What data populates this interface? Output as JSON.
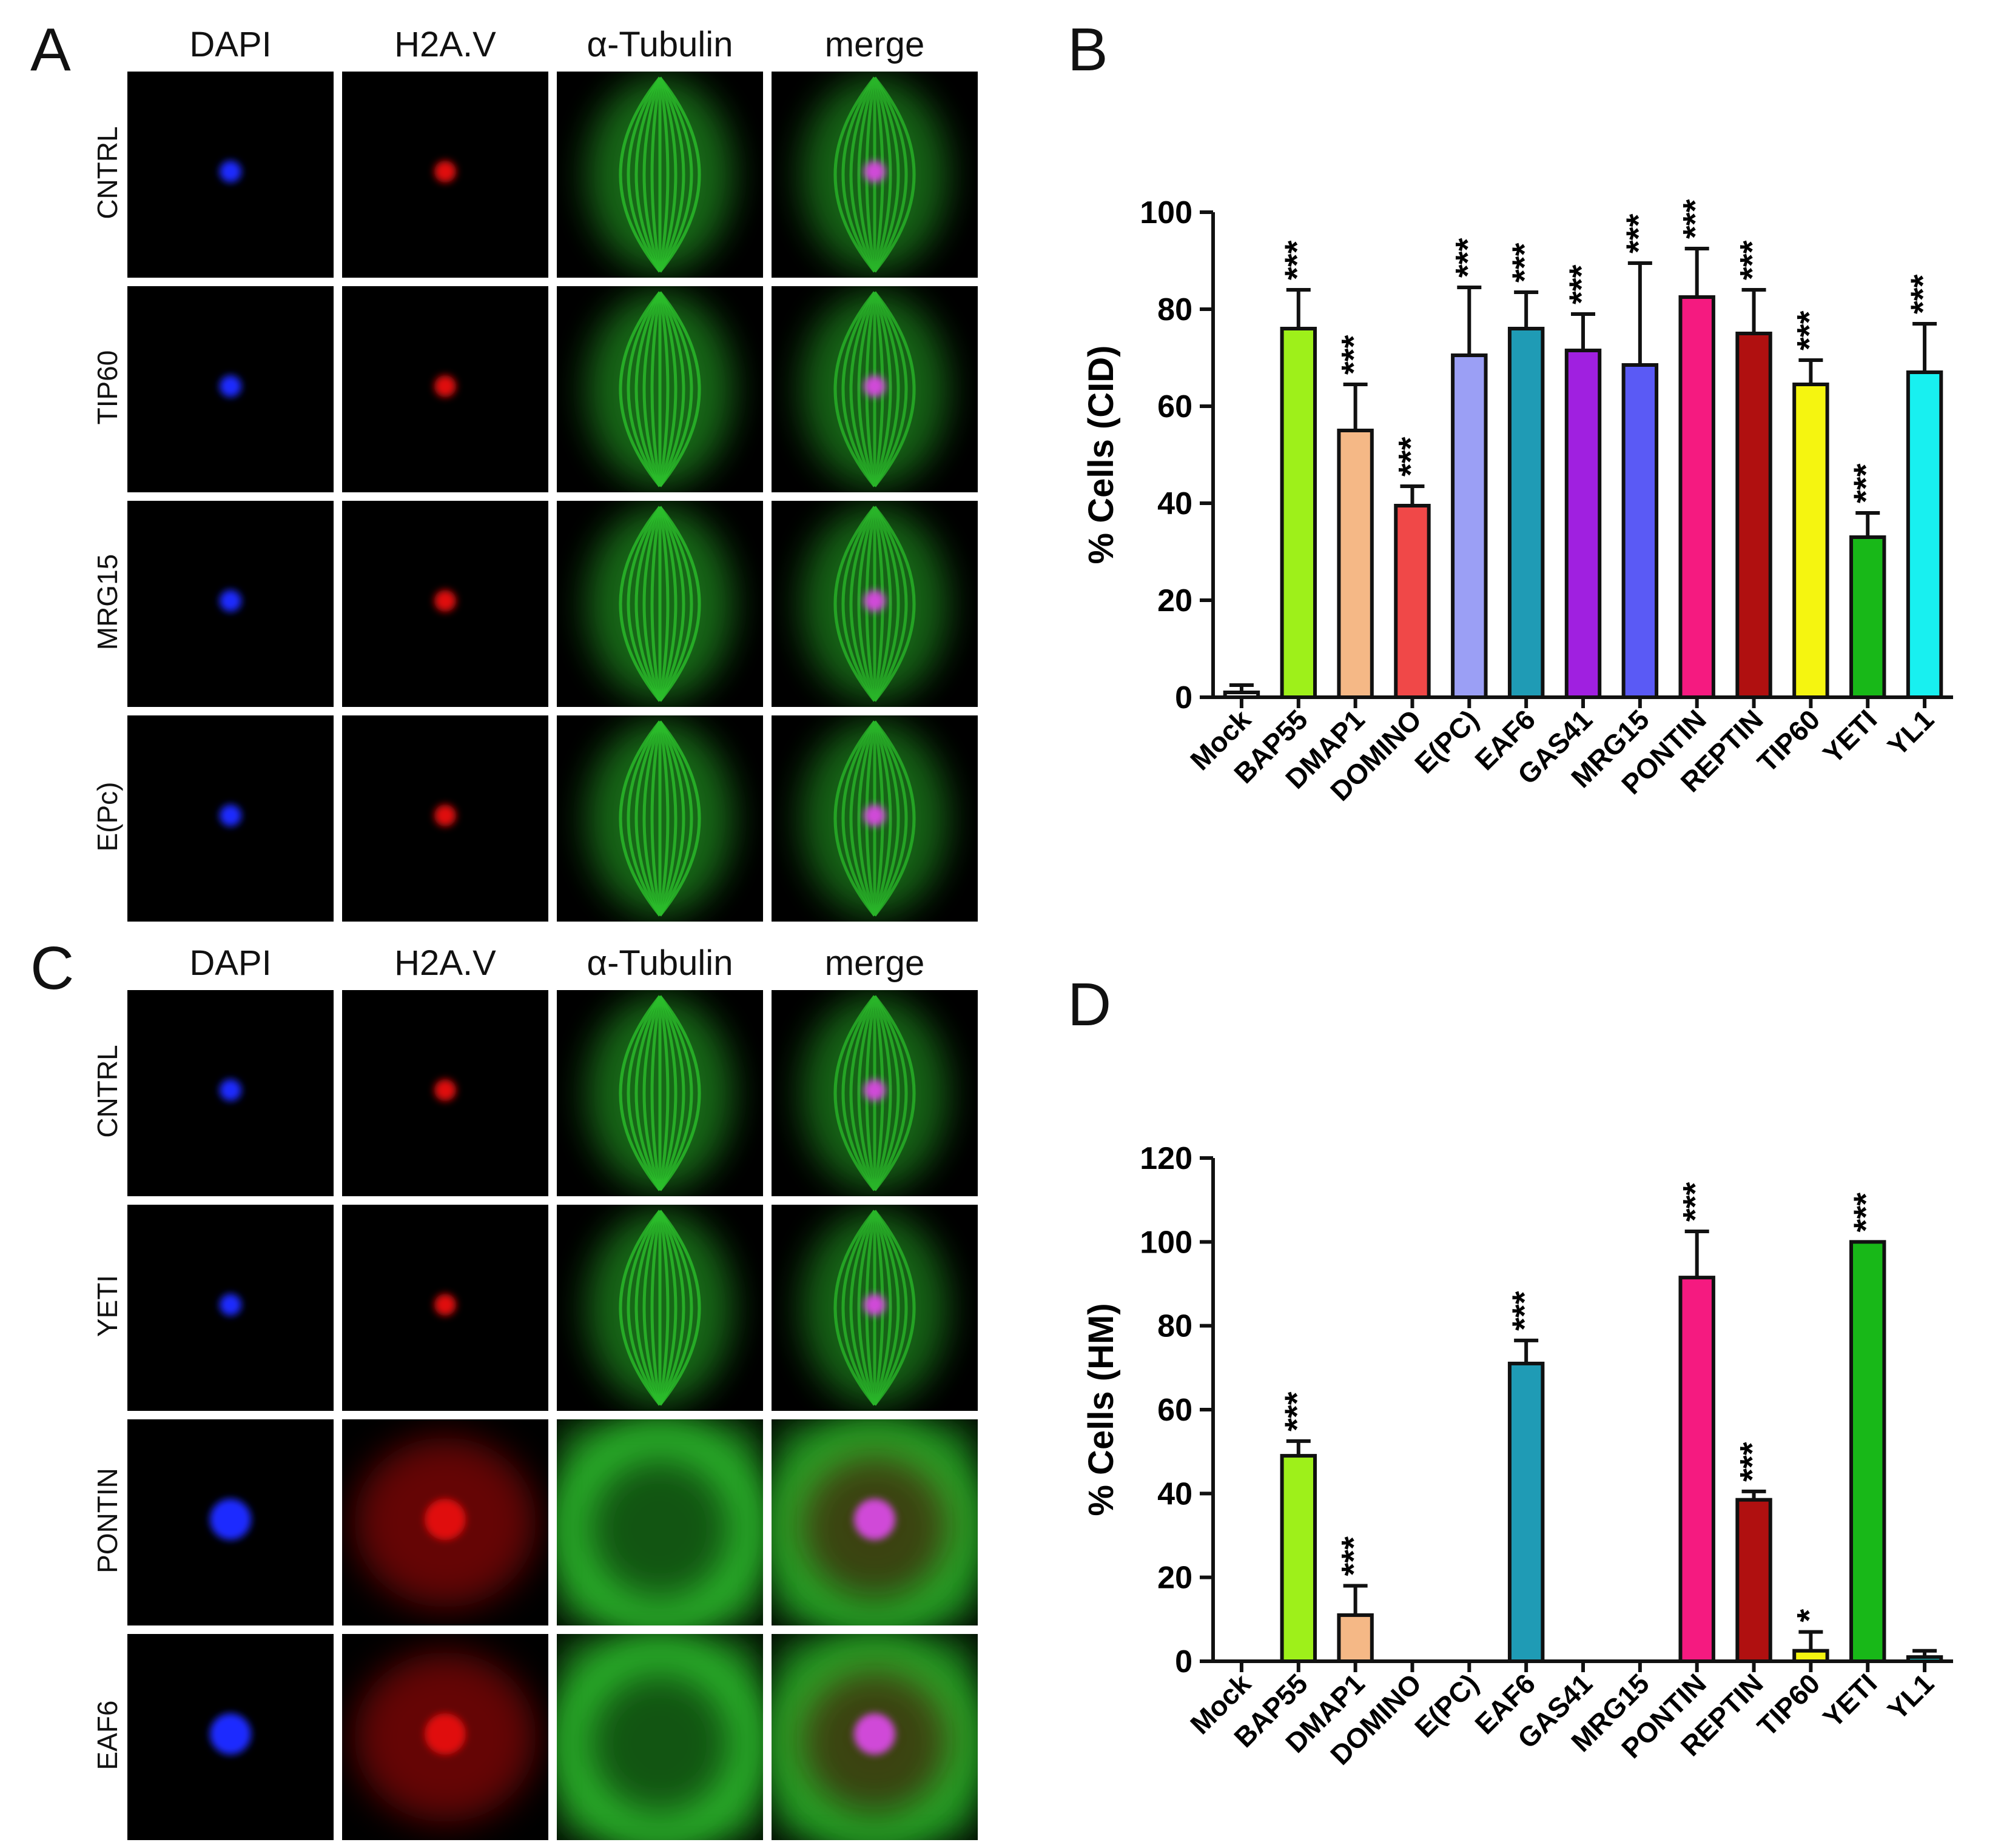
{
  "panels": {
    "A": {
      "letter": "A",
      "columns": [
        "DAPI",
        "H2A.V",
        "α-Tubulin",
        "merge"
      ],
      "rows": [
        "CNTRL",
        "TIP60",
        "MRG15",
        "E(Pc)"
      ]
    },
    "B": {
      "letter": "B"
    },
    "C": {
      "letter": "C",
      "columns": [
        "DAPI",
        "H2A.V",
        "α-Tubulin",
        "merge"
      ],
      "rows": [
        "CNTRL",
        "YETI",
        "PONTIN",
        "EAF6"
      ]
    },
    "D": {
      "letter": "D"
    }
  },
  "colors": {
    "dapi": "#1a2cff",
    "h2av": "#e01010",
    "tubulin": "#2ec82e"
  },
  "chart_data": [
    {
      "type": "bar",
      "panel": "B",
      "categories": [
        "Mock",
        "BAP55",
        "DMAP1",
        "DOMINO",
        "E(PC)",
        "EAF6",
        "GAS41",
        "MRG15",
        "PONTIN",
        "REPTIN",
        "TIP60",
        "YETI",
        "YL1"
      ],
      "values": [
        1,
        76,
        55,
        39.5,
        70.5,
        76,
        71.5,
        68.5,
        82.5,
        75,
        64.5,
        33,
        67
      ],
      "errors": [
        1.5,
        8,
        9.5,
        4,
        14,
        7.5,
        7.5,
        21,
        10,
        9,
        5,
        5,
        10
      ],
      "significance": [
        "",
        "***",
        "***",
        "***",
        "***",
        "***",
        "***",
        "***",
        "***",
        "***",
        "***",
        "***",
        "***"
      ],
      "colors": [
        "#ffffff",
        "#9ef01a",
        "#f5b886",
        "#f04848",
        "#9b9ff5",
        "#1f9bb5",
        "#a020e0",
        "#5a5af5",
        "#f51a80",
        "#b01010",
        "#f5f510",
        "#18b818",
        "#18f0f0"
      ],
      "ylabel": "% Cells (CID)",
      "ylim": [
        0,
        100
      ],
      "yticks": [
        0,
        20,
        40,
        60,
        80,
        100
      ],
      "xlabel": "",
      "title": ""
    },
    {
      "type": "bar",
      "panel": "D",
      "categories": [
        "Mock",
        "BAP55",
        "DMAP1",
        "DOMINO",
        "E(PC)",
        "EAF6",
        "GAS41",
        "MRG15",
        "PONTIN",
        "REPTIN",
        "TIP60",
        "YETI",
        "YL1"
      ],
      "values": [
        0,
        49,
        11,
        0,
        0,
        71,
        0,
        0,
        91.5,
        38.5,
        2.5,
        100,
        1
      ],
      "errors": [
        0,
        3.5,
        7,
        0,
        0,
        5.5,
        0,
        0,
        11,
        2,
        4.5,
        0,
        1.5
      ],
      "significance": [
        "",
        "***",
        "***",
        "",
        "",
        "***",
        "",
        "",
        "***",
        "***",
        "*",
        "***",
        ""
      ],
      "colors": [
        "#ffffff",
        "#9ef01a",
        "#f5b886",
        "#f04848",
        "#9b9ff5",
        "#1f9bb5",
        "#a020e0",
        "#5a5af5",
        "#f51a80",
        "#b01010",
        "#f5f510",
        "#18b818",
        "#18f0f0"
      ],
      "ylabel": "% Cells (HM)",
      "ylim": [
        0,
        120
      ],
      "yticks": [
        0,
        20,
        40,
        60,
        80,
        100,
        120
      ],
      "xlabel": "",
      "title": ""
    }
  ]
}
